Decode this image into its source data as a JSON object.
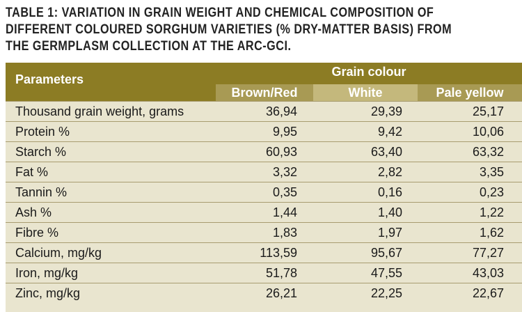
{
  "caption": {
    "line1": "TABLE 1: VARIATION IN GRAIN WEIGHT AND CHEMICAL COMPOSITION OF",
    "line2": "DIFFERENT COLOURED SORGHUM VARIETIES (% DRY-MATTER BASIS) FROM",
    "line3": "THE GERMPLASM COLLECTION AT THE ARC-GCI."
  },
  "table": {
    "parameters_header": "Parameters",
    "group_header": "Grain colour",
    "columns": [
      "Brown/Red",
      "White",
      "Pale yellow"
    ],
    "rows": [
      {
        "parameter": "Thousand grain weight, grams",
        "values": [
          "36,94",
          "29,39",
          "25,17"
        ]
      },
      {
        "parameter": "Protein %",
        "values": [
          "9,95",
          "9,42",
          "10,06"
        ]
      },
      {
        "parameter": "Starch %",
        "values": [
          "60,93",
          "63,40",
          "63,32"
        ]
      },
      {
        "parameter": "Fat %",
        "values": [
          "3,32",
          "2,82",
          "3,35"
        ]
      },
      {
        "parameter": "Tannin %",
        "values": [
          "0,35",
          "0,16",
          "0,23"
        ]
      },
      {
        "parameter": "Ash %",
        "values": [
          "1,44",
          "1,40",
          "1,22"
        ]
      },
      {
        "parameter": "Fibre %",
        "values": [
          "1,83",
          "1,97",
          "1,62"
        ]
      },
      {
        "parameter": "Calcium, mg/kg",
        "values": [
          "113,59",
          "95,67",
          "77,27"
        ]
      },
      {
        "parameter": "Iron, mg/kg",
        "values": [
          "51,78",
          "47,55",
          "43,03"
        ]
      },
      {
        "parameter": "Zinc, mg/kg",
        "values": [
          "26,21",
          "22,25",
          "22,67"
        ]
      }
    ]
  }
}
